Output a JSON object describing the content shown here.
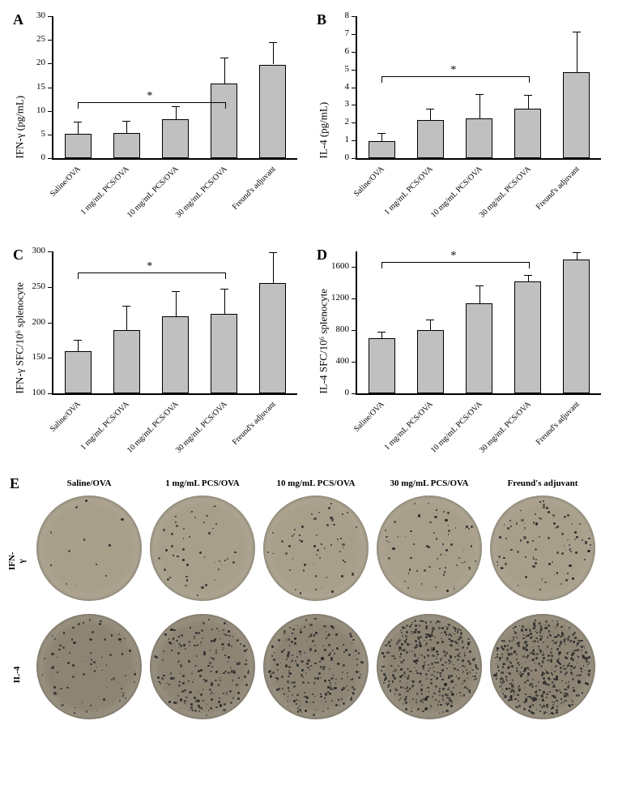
{
  "categories": [
    "Saline/OVA",
    "1 mg/mL PCS/OVA",
    "10 mg/mL PCS/OVA",
    "30 mg/mL PCS/OVA",
    "Freund's adjuvant"
  ],
  "bar_color": "#c0c0c0",
  "bar_border": "#000000",
  "background_color": "#ffffff",
  "axis_color": "#000000",
  "panelA": {
    "label": "A",
    "ylabel": "IFN-γ  (pg/mL)",
    "ylim": [
      0,
      30
    ],
    "ytick_step": 5,
    "values": [
      5.2,
      5.3,
      8.2,
      15.8,
      19.8
    ],
    "errors": [
      2.5,
      2.6,
      2.8,
      5.5,
      4.7
    ],
    "sig": {
      "from": 0,
      "to": 3,
      "y": 10.7,
      "label": "*"
    }
  },
  "panelB": {
    "label": "B",
    "ylabel": "IL-4 (pg/mL)",
    "ylim": [
      0,
      8
    ],
    "ytick_step": 1,
    "values": [
      0.95,
      2.15,
      2.25,
      2.8,
      4.85
    ],
    "errors": [
      0.48,
      0.62,
      1.35,
      0.75,
      2.3
    ],
    "sig": {
      "from": 0,
      "to": 3,
      "y": 4.3,
      "label": "*"
    }
  },
  "panelC": {
    "label": "C",
    "ylabel": "IFN-γ SFC/10⁶ splenocyte",
    "ylim": [
      100,
      300
    ],
    "ytick_step": 50,
    "values": [
      160,
      189,
      209,
      212,
      256
    ],
    "errors": [
      15,
      35,
      35,
      36,
      43
    ],
    "sig": {
      "from": 0,
      "to": 3,
      "y": 262,
      "label": "*"
    }
  },
  "panelD": {
    "label": "D",
    "ylabel": "IL-4 SFC/10⁶ splenocyte",
    "ylim": [
      0,
      1800
    ],
    "ytick_step": 400,
    "values": [
      700,
      805,
      1145,
      1415,
      1695
    ],
    "errors": [
      80,
      130,
      220,
      85,
      90
    ],
    "sig": {
      "from": 0,
      "to": 3,
      "y": 1590,
      "label": "*"
    }
  },
  "panelE": {
    "label": "E",
    "row_labels": [
      "IFN-γ",
      "IL-4"
    ],
    "col_labels": [
      "Saline/OVA",
      "1 mg/mL PCS/OVA",
      "10 mg/mL PCS/OVA",
      "30 mg/mL PCS/OVA",
      "Freund's adjuvant"
    ],
    "well_bg_outer": "#b8b2a0",
    "well_bg_inner_ifn": "#a89f8b",
    "well_bg_inner_il4": "#8d8474",
    "spot_color": "#2a2a2a",
    "spot_counts_ifn": [
      12,
      45,
      55,
      65,
      90
    ],
    "spot_counts_il4": [
      80,
      200,
      230,
      420,
      520
    ]
  }
}
